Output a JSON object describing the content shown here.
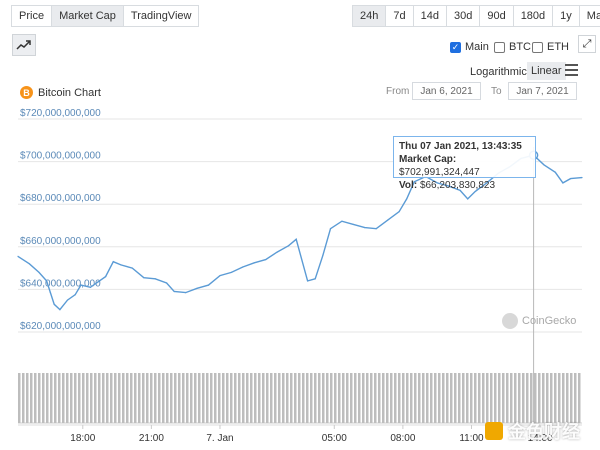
{
  "tabs": {
    "type": [
      {
        "label": "Price",
        "active": false
      },
      {
        "label": "Market Cap",
        "active": true
      },
      {
        "label": "TradingView",
        "active": false
      }
    ],
    "range": [
      {
        "label": "24h",
        "active": true
      },
      {
        "label": "7d",
        "active": false
      },
      {
        "label": "14d",
        "active": false
      },
      {
        "label": "30d",
        "active": false
      },
      {
        "label": "90d",
        "active": false
      },
      {
        "label": "180d",
        "active": false
      },
      {
        "label": "1y",
        "active": false
      },
      {
        "label": "Max",
        "active": false
      }
    ]
  },
  "toggles": {
    "main": {
      "label": "Main",
      "checked": true
    },
    "btc": {
      "label": "BTC",
      "checked": false
    },
    "eth": {
      "label": "ETH",
      "checked": false
    }
  },
  "scale": {
    "logarithmic": "Logarithmic",
    "linear": "Linear"
  },
  "icons": {
    "trend": "trend-line-icon",
    "expand": "expand-icon",
    "menu": "hamburger-menu-icon",
    "coin": "bitcoin-icon",
    "coin_glyph": "B"
  },
  "header": {
    "title": "Bitcoin Chart"
  },
  "dates": {
    "from_label": "From",
    "from_value": "Jan 6, 2021",
    "to_label": "To",
    "to_value": "Jan 7, 2021"
  },
  "tooltip": {
    "date": "Thu 07 Jan 2021, 13:43:35",
    "mcap_label": "Market Cap:",
    "mcap_value": "$702,991,324,447",
    "vol_label": "Vol:",
    "vol_value": "$66,203,830,823"
  },
  "brand": {
    "name": "CoinGecko"
  },
  "watermark": {
    "text": "金色财经"
  },
  "colors": {
    "line": "#5b9bd5",
    "volume": "#bdbdbd",
    "axis_text": "#5b8ab8",
    "coin": "#f7931a"
  },
  "chart_data": {
    "type": "line",
    "ylim": [
      620000000000,
      720000000000
    ],
    "y_ticks": [
      {
        "value": 720000000000,
        "label": "$720,000,000,000"
      },
      {
        "value": 700000000000,
        "label": "$700,000,000,000"
      },
      {
        "value": 680000000000,
        "label": "$680,000,000,000"
      },
      {
        "value": 660000000000,
        "label": "$660,000,000,000"
      },
      {
        "value": 640000000000,
        "label": "$640,000,000,000"
      },
      {
        "value": 620000000000,
        "label": "$620,000,000,000"
      }
    ],
    "xlim": [
      "2021-01-06T15:10",
      "2021-01-07T15:50"
    ],
    "x_ticks": [
      {
        "t": "2021-01-06T18:00",
        "label": "18:00"
      },
      {
        "t": "2021-01-06T21:00",
        "label": "21:00"
      },
      {
        "t": "2021-01-07T00:00",
        "label": "7. Jan"
      },
      {
        "t": "2021-01-07T05:00",
        "label": "05:00"
      },
      {
        "t": "2021-01-07T08:00",
        "label": "08:00"
      },
      {
        "t": "2021-01-07T11:00",
        "label": "11:00"
      },
      {
        "t": "2021-01-07T14:00",
        "label": "14:00"
      }
    ],
    "series": [
      {
        "points": [
          [
            "2021-01-06T15:10",
            655500000000
          ],
          [
            "2021-01-06T15:40",
            652000000000
          ],
          [
            "2021-01-06T16:05",
            648000000000
          ],
          [
            "2021-01-06T16:25",
            644000000000
          ],
          [
            "2021-01-06T16:35",
            638500000000
          ],
          [
            "2021-01-06T16:45",
            633000000000
          ],
          [
            "2021-01-06T17:00",
            630500000000
          ],
          [
            "2021-01-06T17:20",
            635000000000
          ],
          [
            "2021-01-06T17:40",
            637500000000
          ],
          [
            "2021-01-06T17:55",
            642000000000
          ],
          [
            "2021-01-06T18:20",
            641000000000
          ],
          [
            "2021-01-06T18:40",
            643500000000
          ],
          [
            "2021-01-06T19:00",
            646000000000
          ],
          [
            "2021-01-06T19:20",
            653000000000
          ],
          [
            "2021-01-06T19:40",
            651500000000
          ],
          [
            "2021-01-06T20:10",
            650000000000
          ],
          [
            "2021-01-06T20:40",
            645500000000
          ],
          [
            "2021-01-06T21:10",
            645000000000
          ],
          [
            "2021-01-06T21:40",
            643000000000
          ],
          [
            "2021-01-06T22:00",
            639000000000
          ],
          [
            "2021-01-06T22:30",
            638500000000
          ],
          [
            "2021-01-06T23:00",
            640500000000
          ],
          [
            "2021-01-06T23:30",
            642000000000
          ],
          [
            "2021-01-07T00:00",
            646500000000
          ],
          [
            "2021-01-07T00:30",
            648000000000
          ],
          [
            "2021-01-07T01:00",
            650500000000
          ],
          [
            "2021-01-07T01:30",
            652500000000
          ],
          [
            "2021-01-07T02:00",
            654000000000
          ],
          [
            "2021-01-07T02:30",
            657500000000
          ],
          [
            "2021-01-07T03:00",
            660500000000
          ],
          [
            "2021-01-07T03:20",
            663500000000
          ],
          [
            "2021-01-07T03:50",
            644000000000
          ],
          [
            "2021-01-07T04:10",
            645000000000
          ],
          [
            "2021-01-07T04:30",
            656000000000
          ],
          [
            "2021-01-07T04:50",
            668500000000
          ],
          [
            "2021-01-07T05:20",
            672000000000
          ],
          [
            "2021-01-07T05:50",
            670500000000
          ],
          [
            "2021-01-07T06:20",
            669000000000
          ],
          [
            "2021-01-07T06:50",
            668500000000
          ],
          [
            "2021-01-07T07:20",
            672500000000
          ],
          [
            "2021-01-07T07:50",
            676500000000
          ],
          [
            "2021-01-07T08:10",
            682500000000
          ],
          [
            "2021-01-07T08:30",
            690500000000
          ],
          [
            "2021-01-07T09:00",
            693000000000
          ],
          [
            "2021-01-07T09:30",
            690000000000
          ],
          [
            "2021-01-07T10:00",
            688500000000
          ],
          [
            "2021-01-07T10:30",
            686500000000
          ],
          [
            "2021-01-07T10:50",
            682500000000
          ],
          [
            "2021-01-07T11:10",
            686000000000
          ],
          [
            "2021-01-07T11:40",
            690000000000
          ],
          [
            "2021-01-07T12:10",
            694500000000
          ],
          [
            "2021-01-07T12:40",
            697500000000
          ],
          [
            "2021-01-07T13:10",
            701500000000
          ],
          [
            "2021-01-07T13:43",
            703000000000
          ],
          [
            "2021-01-07T14:10",
            698500000000
          ],
          [
            "2021-01-07T14:40",
            695000000000
          ],
          [
            "2021-01-07T15:00",
            690000000000
          ],
          [
            "2021-01-07T15:20",
            692000000000
          ],
          [
            "2021-01-07T15:50",
            692500000000
          ]
        ]
      }
    ],
    "highlight": {
      "t": "2021-01-07T13:43",
      "value": 702991324447
    }
  }
}
